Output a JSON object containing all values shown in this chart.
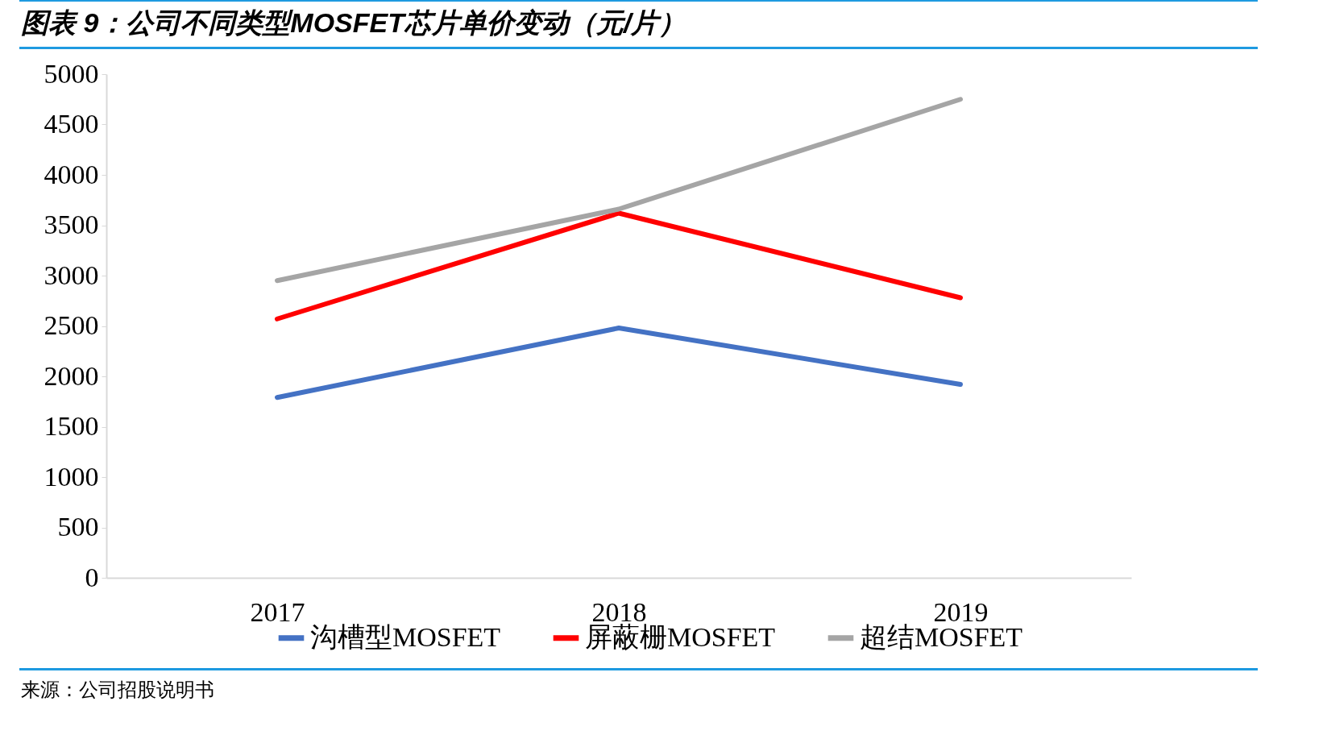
{
  "chart_data": {
    "type": "line",
    "title": "图表 9：公司不同类型MOSFET芯片单价变动（元/片）",
    "annotations": [
      "来源：公司招股说明书"
    ],
    "categories": [
      "2017",
      "2018",
      "2019"
    ],
    "series": [
      {
        "name": "沟槽型MOSFET",
        "color": "#4472c4",
        "values": [
          1790,
          2480,
          1920
        ]
      },
      {
        "name": "屏蔽栅MOSFET",
        "color": "#ff0000",
        "values": [
          2570,
          3620,
          2780
        ]
      },
      {
        "name": "超结MOSFET",
        "color": "#a5a5a5",
        "values": [
          2950,
          3660,
          4750
        ]
      }
    ],
    "ylim": [
      0,
      5000
    ],
    "yticks": [
      0,
      500,
      1000,
      1500,
      2000,
      2500,
      3000,
      3500,
      4000,
      4500,
      5000
    ],
    "grid": false,
    "legend": "bottom",
    "marker": "none",
    "line_style": "solid"
  }
}
